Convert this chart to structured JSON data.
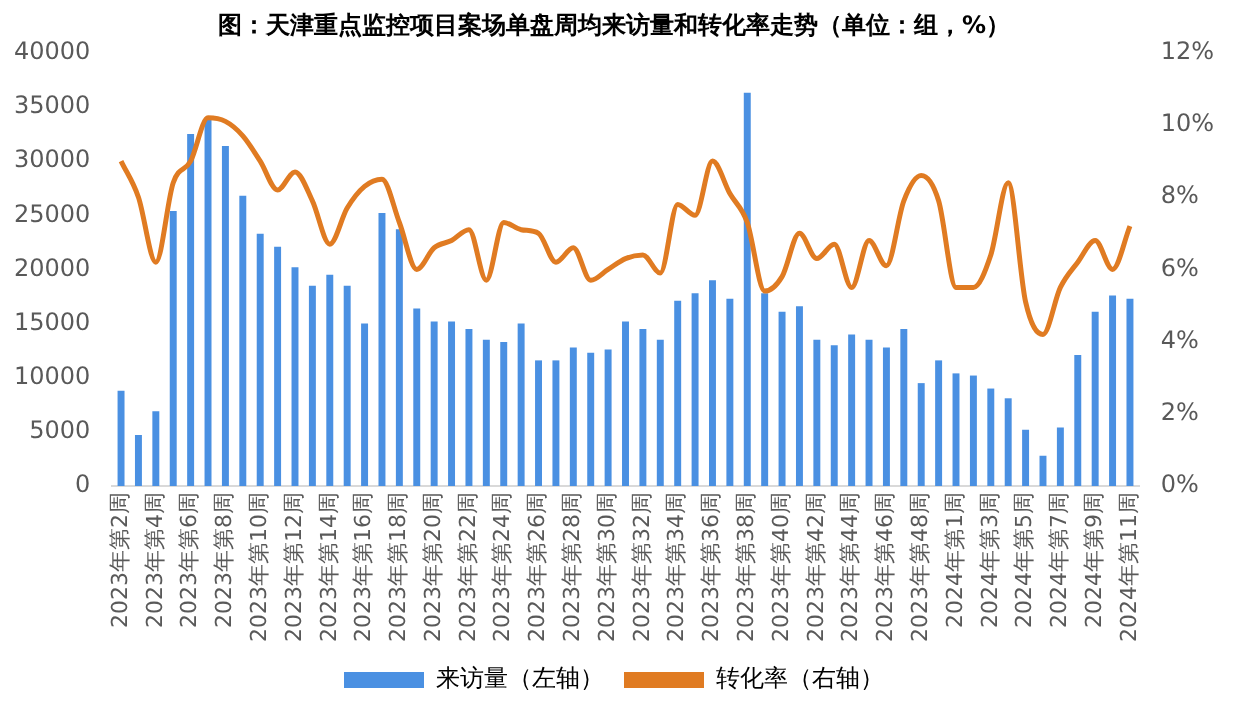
{
  "chart_data": {
    "type": "bar",
    "title": "图：天津重点监控项目案场单盘周均来访量和转化率走势（单位：组，%）",
    "categories": [
      "2023年第2周",
      null,
      "2023年第4周",
      null,
      "2023年第6周",
      null,
      "2023年第8周",
      null,
      "2023年第10周",
      null,
      "2023年第12周",
      null,
      "2023年第14周",
      null,
      "2023年第16周",
      null,
      "2023年第18周",
      null,
      "2023年第20周",
      null,
      "2023年第22周",
      null,
      "2023年第24周",
      null,
      "2023年第26周",
      null,
      "2023年第28周",
      null,
      "2023年第30周",
      null,
      "2023年第32周",
      null,
      "2023年第34周",
      null,
      "2023年第36周",
      null,
      "2023年第38周",
      null,
      "2023年第40周",
      null,
      "2023年第42周",
      null,
      "2023年第44周",
      null,
      "2023年第46周",
      null,
      "2023年第48周",
      null,
      "2024年第1周",
      null,
      "2024年第3周",
      null,
      "2024年第5周",
      null,
      "2024年第7周",
      null,
      "2024年第9周",
      null,
      "2024年第11周"
    ],
    "series": [
      {
        "name": "来访量（左轴）",
        "color": "#4a90e2",
        "values": [
          8800,
          4700,
          6900,
          25400,
          32500,
          34000,
          31400,
          26800,
          23300,
          22100,
          20200,
          18500,
          19500,
          18500,
          15000,
          25200,
          23700,
          16400,
          15200,
          15200,
          14500,
          13500,
          13300,
          15000,
          11600,
          11600,
          12800,
          12300,
          12600,
          15200,
          14500,
          13500,
          17100,
          17800,
          19000,
          17300,
          36300,
          17800,
          16100,
          16600,
          13500,
          13000,
          14000,
          13500,
          12800,
          14500,
          9500,
          11600,
          10400,
          10200,
          9000,
          8100,
          5200,
          2800,
          5400,
          12100,
          16100,
          17600,
          17300
        ]
      },
      {
        "name": "转化率（右轴）",
        "type": "line",
        "axis": "y2",
        "color": "#e07b22",
        "values": [
          9.0,
          8.0,
          6.2,
          8.4,
          9.0,
          10.2,
          10.1,
          9.7,
          9.0,
          8.2,
          8.7,
          7.9,
          6.7,
          7.7,
          8.3,
          8.5,
          7.3,
          6.0,
          6.6,
          6.8,
          7.1,
          5.7,
          7.3,
          7.1,
          7.0,
          6.2,
          6.6,
          5.7,
          6.0,
          6.3,
          6.4,
          5.9,
          7.8,
          7.5,
          9.0,
          8.1,
          7.3,
          5.4,
          5.8,
          7.0,
          6.3,
          6.7,
          5.5,
          6.8,
          6.1,
          7.9,
          8.6,
          7.9,
          5.5,
          5.5,
          6.4,
          8.4,
          5.1,
          4.2,
          5.5,
          6.2,
          6.8,
          6.0,
          7.2
        ]
      }
    ],
    "ylim": [
      0,
      40000
    ],
    "yticks": [
      0,
      5000,
      10000,
      15000,
      20000,
      25000,
      30000,
      35000,
      40000
    ],
    "y2lim": [
      0,
      12
    ],
    "y2ticks": [
      {
        "value": 0,
        "label": "0%"
      },
      {
        "value": 2,
        "label": "2%"
      },
      {
        "value": 4,
        "label": "4%"
      },
      {
        "value": 6,
        "label": "6%"
      },
      {
        "value": 8,
        "label": "8%"
      },
      {
        "value": 10,
        "label": "10%"
      },
      {
        "value": 12,
        "label": "12%"
      }
    ],
    "grid": false,
    "legend": "bottom",
    "marker": "none",
    "line_style": "solid"
  }
}
